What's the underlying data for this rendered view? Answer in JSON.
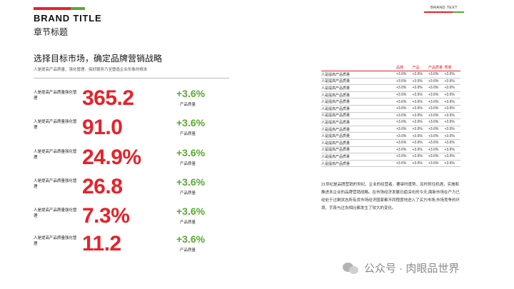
{
  "header": {
    "brand_title": "BRAND  TITLE",
    "chapter_title": "章节标题",
    "brand_text": "BRAND TEXT",
    "colors": {
      "accent_red": "#e8212a",
      "accent_green": "#5aa832"
    }
  },
  "section": {
    "heading": "选择目标市场，确定品牌营销战略",
    "subtitle": "人是提高产品质量、强化管理、搞好服务乃至塑造企业形象的根本"
  },
  "stats": [
    {
      "label": "人是提高产品质量强化管理",
      "value": "365.2",
      "change": "+3.6%",
      "change_label": "产品质量"
    },
    {
      "label": "人是提高产品质量强化管理",
      "value": "91.0",
      "change": "+3.6%",
      "change_label": "产品质量"
    },
    {
      "label": "人是提高产品质量强化管理",
      "value": "24.9%",
      "change": "+3.6%",
      "change_label": "产品质量"
    },
    {
      "label": "人是提高产品质量强化管理",
      "value": "26.8",
      "change": "+3.6%",
      "change_label": "产品质量"
    },
    {
      "label": "人是提高产品质量强化管理",
      "value": "7.3%",
      "change": "+3.6%",
      "change_label": "产品质量"
    },
    {
      "label": "人是提高产品质量强化管理",
      "value": "11.2",
      "change": "+3.6%",
      "change_label": "产品质量"
    }
  ],
  "table": {
    "headers": [
      "",
      "品牌",
      "产品",
      "产品质量",
      "质量"
    ],
    "rows": [
      [
        "人是提高产品质量",
        "+3.6%",
        "+3.6%",
        "+3.6%",
        "+3.6%"
      ],
      [
        "人是提高产品质量",
        "+3.6%",
        "+3.6%",
        "+3.6%",
        "+3.6%"
      ],
      [
        "人是提高产品质量",
        "+3.6%",
        "+3.6%",
        "+3.6%",
        "+3.6%"
      ],
      [
        "人是提高产品质量",
        "+3.6%",
        "+3.6%",
        "+3.6%",
        "+3.6%"
      ],
      [
        "人是提高产品质量",
        "+3.6%",
        "+3.6%",
        "+3.6%",
        "+3.6%"
      ],
      [
        "人是提高产品质量",
        "+3.6%",
        "+3.6%",
        "+3.6%",
        "+3.6%"
      ],
      [
        "人是提高产品质量",
        "+3.6%",
        "+3.6%",
        "+3.6%",
        "+3.6%"
      ],
      [
        "人是提高产品质量",
        "+3.6%",
        "+3.6%",
        "+3.6%",
        "+3.6%"
      ],
      [
        "人是提高产品质量",
        "+3.6%",
        "+3.6%",
        "+3.6%",
        "+3.6%"
      ],
      [
        "人是提高产品质量",
        "+3.6%",
        "+3.6%",
        "+3.6%",
        "+3.6%"
      ],
      [
        "人是提高产品质量",
        "+3.6%",
        "+3.6%",
        "+3.6%",
        "+3.6%"
      ],
      [
        "人是提高产品质量",
        "+3.6%",
        "+3.6%",
        "+3.6%",
        "+3.6%"
      ],
      [
        "人是提高产品质量",
        "+3.6%",
        "+3.6%",
        "+3.6%",
        "+3.6%"
      ],
      [
        "人是提高产品质量",
        "+3.6%",
        "+3.6%",
        "+3.6%",
        "+3.6%"
      ]
    ]
  },
  "paragraph": "21世纪是品牌营销的世纪，企业的经营者，要审时度势，及时抓住机遇，实施和推进本企业的品牌营销战略。在市场经济发展日趋深化的今天,面新市场在产力已经处于过剩状态所有货市场经济国家都不同程度地进入了买方市场,市场竞争的环境、手段与过去相比都发生了较大的变化。",
  "watermark": {
    "icon": "wechat-icon",
    "text": "公众号 · 肉眼品世界"
  }
}
